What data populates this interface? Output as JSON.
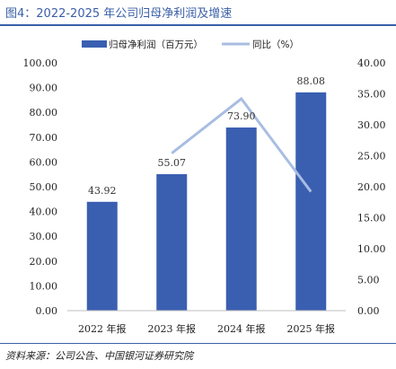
{
  "header": {
    "title": "图4：2022-2025 年公司归母净利润及增速"
  },
  "footer": {
    "source": "资料来源：公司公告、中国银河证券研究院"
  },
  "chart_data": {
    "type": "bar",
    "categories": [
      "2022 年报",
      "2023 年报",
      "2024 年报",
      "2025 年报"
    ],
    "series": [
      {
        "name": "归母净利润（百万元）",
        "type": "bar",
        "axis": "left",
        "values": [
          43.92,
          55.07,
          73.9,
          88.08
        ],
        "labels": [
          "43.92",
          "55.07",
          "73.90",
          "88.08"
        ],
        "color": "#3a5fb1"
      },
      {
        "name": "同比（%）",
        "type": "line",
        "axis": "right",
        "values": [
          null,
          25.4,
          34.2,
          19.2
        ],
        "color": "#a9bde2"
      }
    ],
    "y_left": {
      "min": 0,
      "max": 100,
      "step": 10,
      "ticks": [
        "0.00",
        "10.00",
        "20.00",
        "30.00",
        "40.00",
        "50.00",
        "60.00",
        "70.00",
        "80.00",
        "90.00",
        "100.00"
      ]
    },
    "y_right": {
      "min": 0,
      "max": 40,
      "step": 5,
      "ticks": [
        "0.00",
        "5.00",
        "10.00",
        "15.00",
        "20.00",
        "25.00",
        "30.00",
        "35.00",
        "40.00"
      ]
    },
    "legend_position": "top",
    "grid": false
  }
}
